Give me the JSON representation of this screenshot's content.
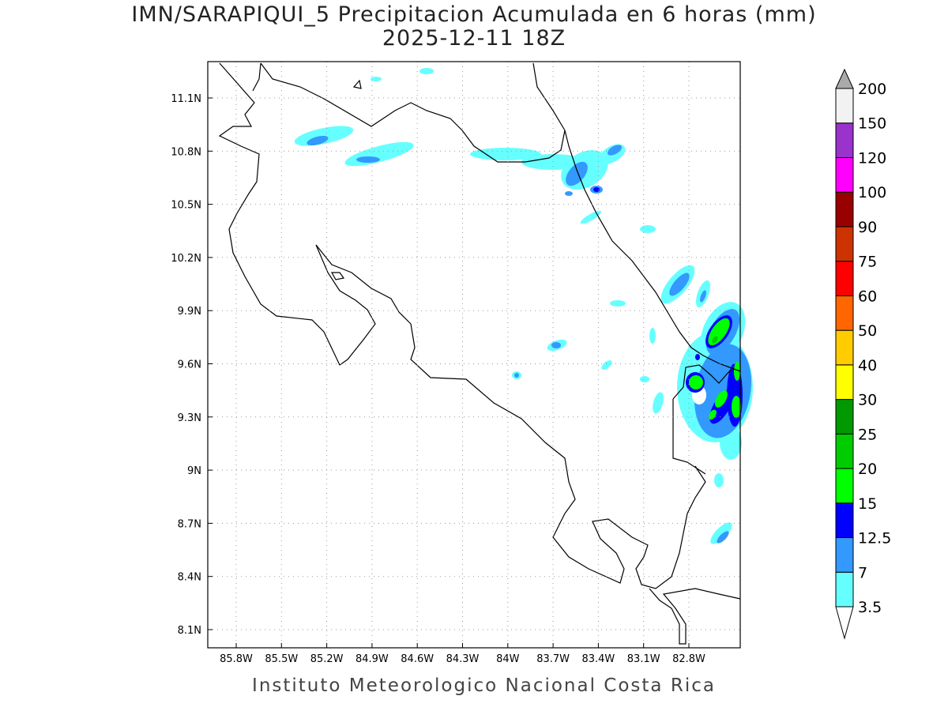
{
  "title": {
    "line1": "IMN/SARAPIQUI_5 Precipitacion Acumulada en 6 horas (mm)",
    "line2": "2025-12-11 18Z"
  },
  "map": {
    "lon_labels": [
      "85.8W",
      "85.5W",
      "85.2W",
      "84.9W",
      "84.6W",
      "84.3W",
      "84W",
      "83.7W",
      "83.4W",
      "83.1W",
      "82.8W"
    ],
    "lat_labels": [
      "11.1N",
      "10.8N",
      "10.5N",
      "10.2N",
      "9.9N",
      "9.6N",
      "9.3N",
      "9N",
      "8.7N",
      "8.4N",
      "8.1N"
    ]
  },
  "colorbar": {
    "levels": [
      "3.5",
      "7",
      "12.5",
      "15",
      "20",
      "25",
      "30",
      "40",
      "50",
      "60",
      "75",
      "90",
      "100",
      "120",
      "150",
      "200"
    ],
    "colors": [
      "#66ffff",
      "#3399ff",
      "#0000ff",
      "#00ff00",
      "#00cc00",
      "#009900",
      "#ffff00",
      "#ffcc00",
      "#ff6600",
      "#ff0000",
      "#cc3300",
      "#990000",
      "#ff00ff",
      "#9933cc",
      "#f2f2f2"
    ],
    "over_color": "#aaaaaa",
    "under_color": "#ffffff"
  },
  "footer": "Instituto Meteorologico Nacional Costa Rica"
}
